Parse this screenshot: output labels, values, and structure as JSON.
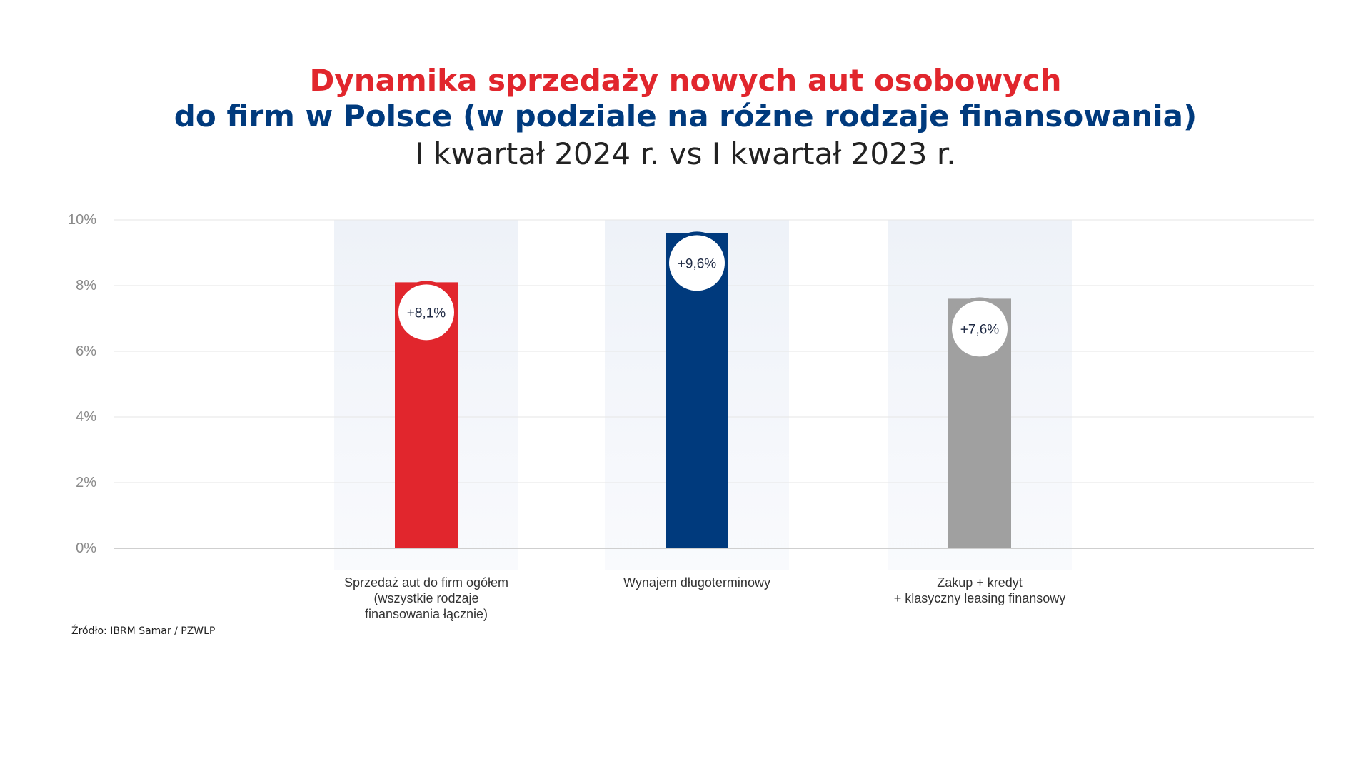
{
  "title": {
    "line1": "Dynamika sprzedaży nowych aut osobowych",
    "line2": "do firm w Polsce (w podziale na różne rodzaje finansowania)",
    "line3": "I kwartał 2024 r. vs I kwartał 2023 r."
  },
  "colors": {
    "title_red": "#e1262d",
    "title_blue": "#003a7d",
    "grid": "#e6e6e6",
    "column_shade": "#eef2f8"
  },
  "source": "Źródło:  IBRM Samar / PZWLP",
  "chart_data": {
    "type": "bar",
    "categories": [
      [
        "Sprzedaż aut do firm ogółem",
        "(wszystkie rodzaje",
        "finansowania łącznie)"
      ],
      [
        "Wynajem długoterminowy"
      ],
      [
        "Zakup + kredyt",
        "+ klasyczny leasing finansowy"
      ]
    ],
    "values": [
      8.1,
      9.6,
      7.6
    ],
    "data_labels": [
      "+8,1%",
      "+9,6%",
      "+7,6%"
    ],
    "bar_colors": [
      "#e1262d",
      "#003a7d",
      "#a0a0a0"
    ],
    "y_ticks": [
      "0%",
      "2%",
      "4%",
      "6%",
      "8%",
      "10%"
    ],
    "y_tick_values": [
      0,
      2,
      4,
      6,
      8,
      10
    ],
    "ylim": [
      0,
      10
    ],
    "grid": true,
    "xlabel": "",
    "ylabel": ""
  }
}
